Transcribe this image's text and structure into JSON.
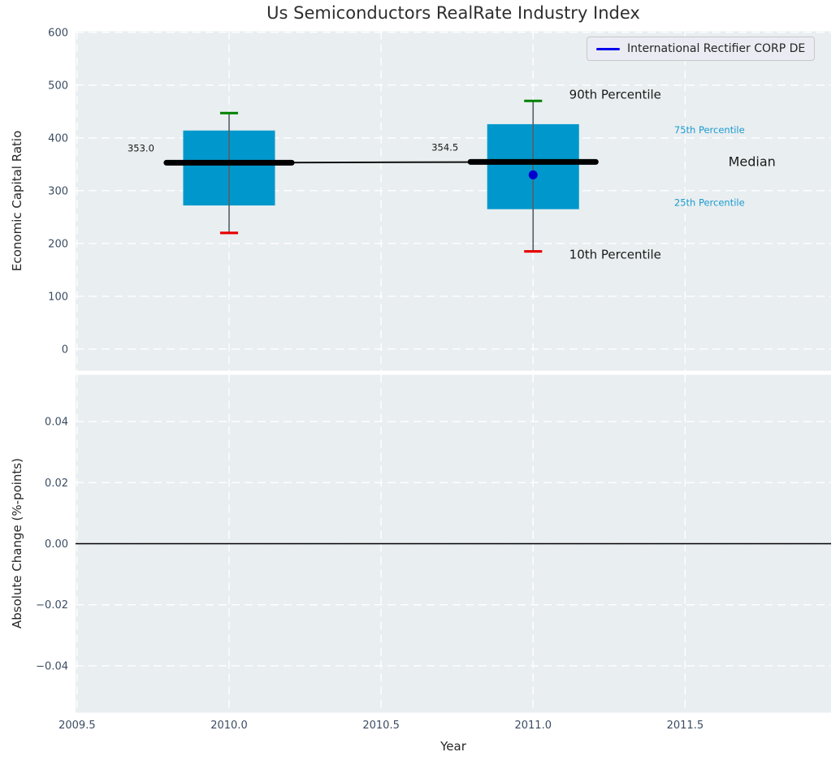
{
  "title": "Us Semiconductors RealRate Industry Index",
  "legend": {
    "label": "International Rectifier CORP DE"
  },
  "colors": {
    "box": "#0098cc",
    "median": "#000000",
    "median_connector": "#111111",
    "whisker": "#555f66",
    "cap_high": "#008000",
    "cap_low": "#e60000",
    "series": "#0000ee",
    "dot": "#0000cc",
    "percentile_label": "#1b9bce",
    "annotation_text": "#1a1a1a",
    "tick": "#3b4d62",
    "plot_bg": "#e9eef0",
    "grid": "#ffffff",
    "zero_line": "#000000"
  },
  "chart_data": {
    "type": "boxplot",
    "title": "Us Semiconductors RealRate Industry Index",
    "xlabel": "Year",
    "xlim": [
      2009.495,
      2011.98
    ],
    "x_ticks": [
      {
        "v": 2009.5,
        "label": "2009.5"
      },
      {
        "v": 2010.0,
        "label": "2010.0"
      },
      {
        "v": 2010.5,
        "label": "2010.5"
      },
      {
        "v": 2011.0,
        "label": "2011.0"
      },
      {
        "v": 2011.5,
        "label": "2011.5"
      }
    ],
    "panels": [
      {
        "ylabel": "Economic Capital Ratio",
        "ylim": [
          -41,
          602
        ],
        "grid": true,
        "y_ticks": [
          {
            "v": 0,
            "label": "0"
          },
          {
            "v": 100,
            "label": "100"
          },
          {
            "v": 200,
            "label": "200"
          },
          {
            "v": 300,
            "label": "300"
          },
          {
            "v": 400,
            "label": "400"
          },
          {
            "v": 500,
            "label": "500"
          },
          {
            "v": 600,
            "label": "600"
          }
        ],
        "boxes": [
          {
            "year": 2010,
            "p10": 220,
            "p25": 272,
            "median": 353.0,
            "p75": 414,
            "p90": 447
          },
          {
            "year": 2011,
            "p10": 185,
            "p25": 265,
            "median": 354.5,
            "p75": 426,
            "p90": 470
          }
        ],
        "series_point": {
          "name": "International Rectifier CORP DE",
          "year": 2011,
          "value": 330
        },
        "annotations": [
          {
            "text": "353.0",
            "x": 2009.71,
            "y": 374,
            "size": 11.5,
            "color": "#1a1a1a"
          },
          {
            "text": "354.5",
            "x": 2010.71,
            "y": 376,
            "size": 11.5,
            "color": "#1a1a1a"
          },
          {
            "text": "90th Percentile",
            "x": 2011.27,
            "y": 474,
            "size": 15,
            "color": "#1a1a1a"
          },
          {
            "text": "10th Percentile",
            "x": 2011.27,
            "y": 171,
            "size": 15,
            "color": "#1a1a1a"
          },
          {
            "text": "75th Percentile",
            "x": 2011.58,
            "y": 409,
            "size": 11.5,
            "color": "#1b9bce"
          },
          {
            "text": "Median",
            "x": 2011.72,
            "y": 347,
            "size": 16,
            "color": "#1a1a1a"
          },
          {
            "text": "25th Percentile",
            "x": 2011.58,
            "y": 271,
            "size": 11.5,
            "color": "#1b9bce"
          }
        ]
      },
      {
        "ylabel": "Absolute Change (%-points)",
        "ylim": [
          -0.0553,
          0.0553
        ],
        "grid": true,
        "y_ticks": [
          {
            "v": 0.04,
            "label": "0.04"
          },
          {
            "v": 0.02,
            "label": "0.02"
          },
          {
            "v": 0.0,
            "label": "0.00"
          },
          {
            "v": -0.02,
            "label": "−0.02"
          },
          {
            "v": -0.04,
            "label": "−0.04"
          }
        ],
        "zero_line": 0.0
      }
    ]
  }
}
